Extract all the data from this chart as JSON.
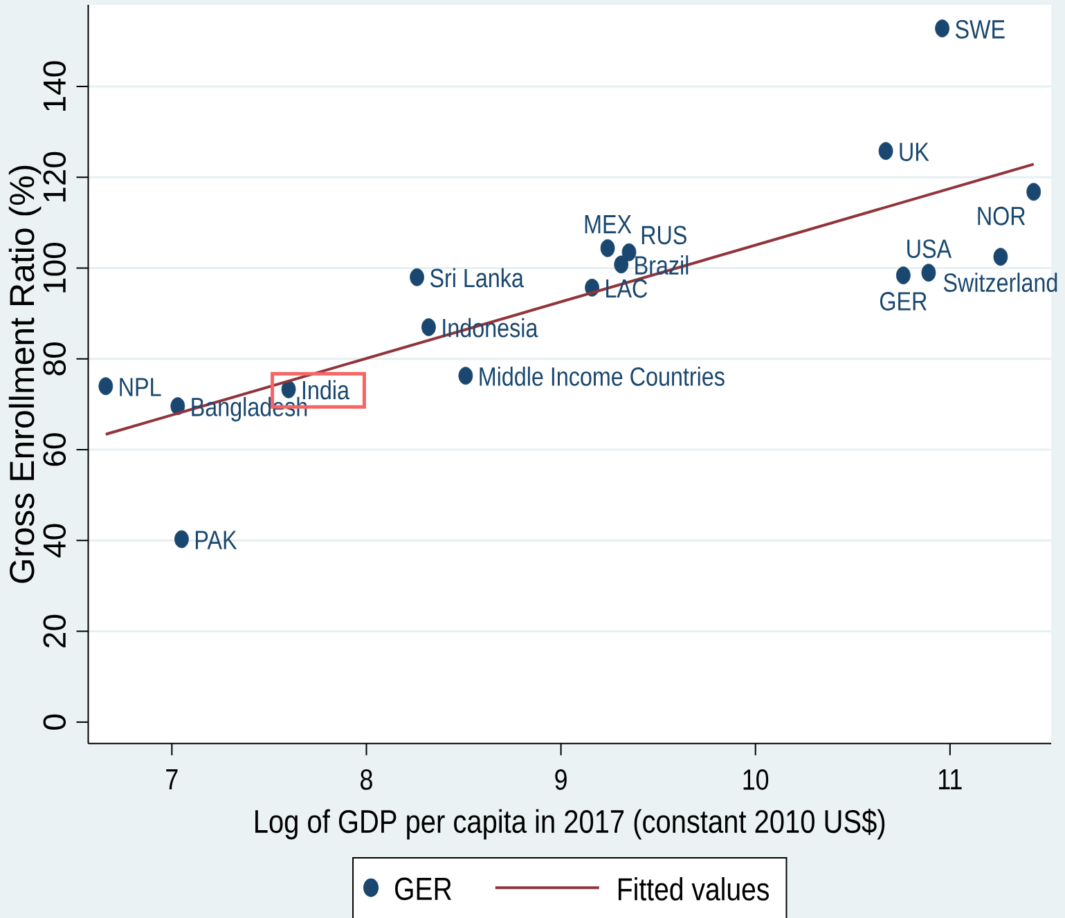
{
  "chart_data": {
    "type": "scatter",
    "xlabel": "Log of GDP per capita in 2017 (constant 2010 US$)",
    "ylabel": "Gross Enrollment Ratio (%)",
    "xlim": [
      6.57,
      11.52
    ],
    "ylim": [
      -4.7,
      158
    ],
    "xticks": [
      7,
      8,
      9,
      10,
      11
    ],
    "yticks": [
      0,
      20,
      40,
      60,
      80,
      100,
      120,
      140
    ],
    "grid": "y",
    "legend": "bottom",
    "marker": "circle",
    "series": [
      {
        "name": "GER",
        "color": "#1a476f",
        "x": [
          6.66,
          7.03,
          7.05,
          7.6,
          8.26,
          8.32,
          8.51,
          9.16,
          9.24,
          9.31,
          9.35,
          10.67,
          10.76,
          10.89,
          10.96,
          11.26,
          11.43
        ],
        "values": [
          74.0,
          69.6,
          40.3,
          73.3,
          98.0,
          87.0,
          76.3,
          95.7,
          104.4,
          100.8,
          103.5,
          125.8,
          98.4,
          99.0,
          152.8,
          102.5,
          116.8
        ]
      },
      {
        "name": "Fitted values",
        "type": "line",
        "color": "#90353b",
        "marker": "none",
        "line_style": "solid",
        "x": [
          6.66,
          11.43
        ],
        "values": [
          63.4,
          122.9
        ]
      }
    ],
    "annotations": [
      {
        "text": "NPL",
        "x": 6.66,
        "y": 74.0
      },
      {
        "text": "Bangladesh",
        "x": 7.03,
        "y": 69.6
      },
      {
        "text": "PAK",
        "x": 7.05,
        "y": 40.3
      },
      {
        "text": "India",
        "x": 7.6,
        "y": 73.3
      },
      {
        "text": "Sri Lanka",
        "x": 8.26,
        "y": 98.0
      },
      {
        "text": "Indonesia",
        "x": 8.32,
        "y": 87.0
      },
      {
        "text": "Middle Income Countries",
        "x": 8.51,
        "y": 76.3
      },
      {
        "text": "LAC",
        "x": 9.16,
        "y": 95.7
      },
      {
        "text": "MEX",
        "x": 9.24,
        "y": 104.4
      },
      {
        "text": "Brazil",
        "x": 9.31,
        "y": 100.8
      },
      {
        "text": "RUS",
        "x": 9.35,
        "y": 103.5
      },
      {
        "text": "UK",
        "x": 10.67,
        "y": 125.8
      },
      {
        "text": "GER",
        "x": 10.76,
        "y": 98.4
      },
      {
        "text": "USA",
        "x": 10.89,
        "y": 99.0
      },
      {
        "text": "SWE",
        "x": 10.96,
        "y": 152.8
      },
      {
        "text": "Switzerland",
        "x": 11.26,
        "y": 102.5
      },
      {
        "text": "NOR",
        "x": 11.43,
        "y": 116.8
      }
    ]
  }
}
